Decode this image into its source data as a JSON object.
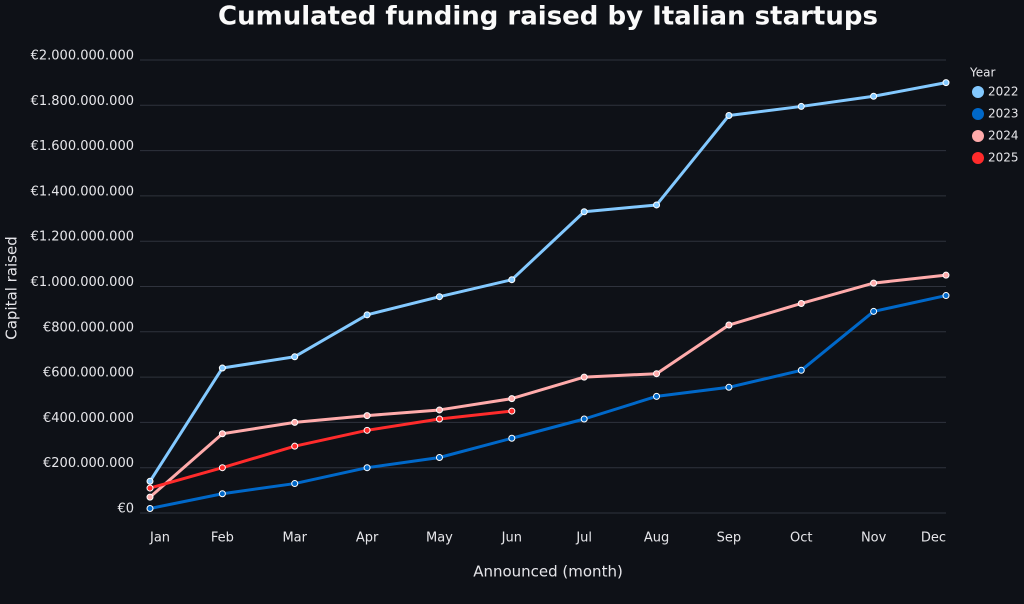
{
  "chart_data": {
    "type": "line",
    "title": "Cumulated funding raised by Italian startups",
    "x_label": "Announced (month)",
    "y_label": "Capital raised",
    "legend_title": "Year",
    "legend": "right",
    "grid": true,
    "categories": [
      "Jan",
      "Feb",
      "Mar",
      "Apr",
      "May",
      "Jun",
      "Jul",
      "Aug",
      "Sep",
      "Oct",
      "Nov",
      "Dec"
    ],
    "series": [
      {
        "name": "2022",
        "color": "#83c9ff",
        "values": [
          140000000,
          640000000,
          690000000,
          875000000,
          955000000,
          1030000000,
          1330000000,
          1360000000,
          1755000000,
          1795000000,
          1840000000,
          1900000000
        ]
      },
      {
        "name": "2023",
        "color": "#0068c9",
        "values": [
          20000000,
          85000000,
          130000000,
          200000000,
          245000000,
          330000000,
          415000000,
          515000000,
          555000000,
          630000000,
          890000000,
          960000000
        ]
      },
      {
        "name": "2024",
        "color": "#ffabab",
        "values": [
          70000000,
          350000000,
          400000000,
          430000000,
          455000000,
          505000000,
          600000000,
          615000000,
          830000000,
          925000000,
          1015000000,
          1050000000
        ]
      },
      {
        "name": "2025",
        "color": "#ff2b2b",
        "values": [
          110000000,
          200000000,
          295000000,
          365000000,
          415000000,
          450000000,
          null,
          null,
          null,
          null,
          null,
          null
        ]
      }
    ],
    "ylim": [
      0,
      2000000000
    ],
    "yticks": [
      {
        "value": 0,
        "label": "€0"
      },
      {
        "value": 200000000,
        "label": "€200.000.000"
      },
      {
        "value": 400000000,
        "label": "€400.000.000"
      },
      {
        "value": 600000000,
        "label": "€600.000.000"
      },
      {
        "value": 800000000,
        "label": "€800.000.000"
      },
      {
        "value": 1000000000,
        "label": "€1.000.000.000"
      },
      {
        "value": 1200000000,
        "label": "€1.200.000.000"
      },
      {
        "value": 1400000000,
        "label": "€1.400.000.000"
      },
      {
        "value": 1600000000,
        "label": "€1.600.000.000"
      },
      {
        "value": 1800000000,
        "label": "€1.800.000.000"
      },
      {
        "value": 2000000000,
        "label": "€2.000.000.000"
      }
    ]
  }
}
